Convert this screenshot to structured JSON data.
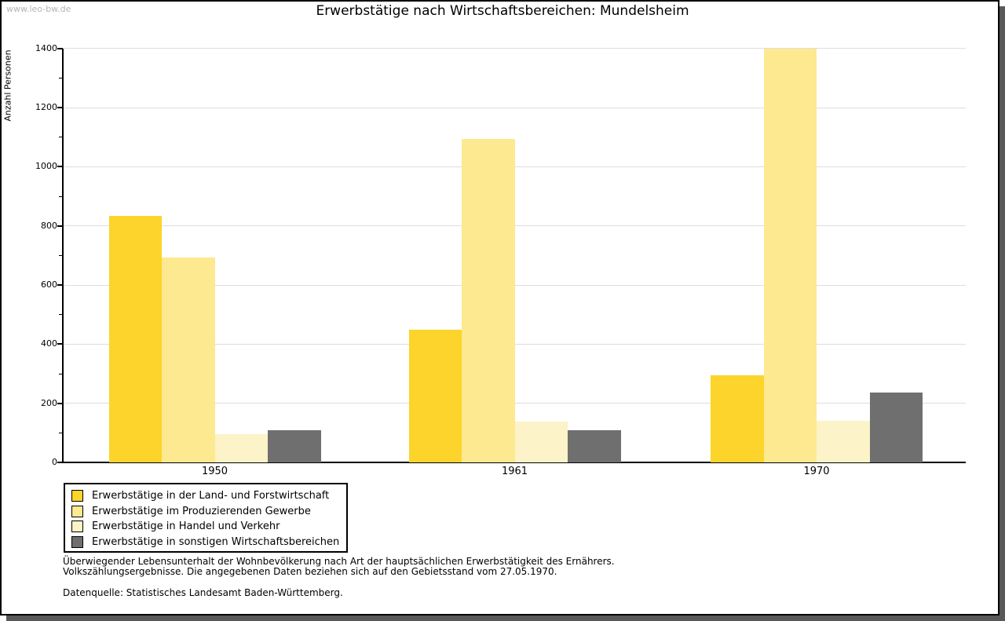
{
  "watermark": "www.leo-bw.de",
  "title": "Erwerbstätige nach Wirtschaftsbereichen: Mundelsheim",
  "chart_data": {
    "type": "bar",
    "title": "Erwerbstätige nach Wirtschaftsbereichen: Mundelsheim",
    "xlabel": "",
    "ylabel": "Anzahl Personen",
    "categories": [
      "1950",
      "1961",
      "1970"
    ],
    "series": [
      {
        "name": "Erwerbstätige in der Land- und Forstwirtschaft",
        "color": "#FCD42B",
        "values": [
          835,
          448,
          296
        ]
      },
      {
        "name": "Erwerbstätige im Produzierenden Gewerbe",
        "color": "#FDE98F",
        "values": [
          693,
          1093,
          1398
        ]
      },
      {
        "name": "Erwerbstätige in Handel und Verkehr",
        "color": "#FCF3C8",
        "values": [
          96,
          138,
          140
        ]
      },
      {
        "name": "Erwerbstätige in sonstigen Wirtschaftsbereichen",
        "color": "#6F6F6F",
        "values": [
          110,
          110,
          236
        ]
      }
    ],
    "axis": {
      "ylim": [
        0,
        1400
      ],
      "tick_step": 200,
      "minor_tick_step": 100,
      "grid": true,
      "gridline_color": "#dedede"
    },
    "legend_position": "bottom-left"
  },
  "footnotes": {
    "line1": "Überwiegender Lebensunterhalt der Wohnbevölkerung nach Art der hauptsächlichen Erwerbstätigkeit des Ernährers.",
    "line2": "Volkszählungsergebnisse. Die angegebenen Daten beziehen sich auf den Gebietsstand vom 27.05.1970.",
    "source": "Datenquelle: Statistisches Landesamt Baden-Württemberg."
  }
}
